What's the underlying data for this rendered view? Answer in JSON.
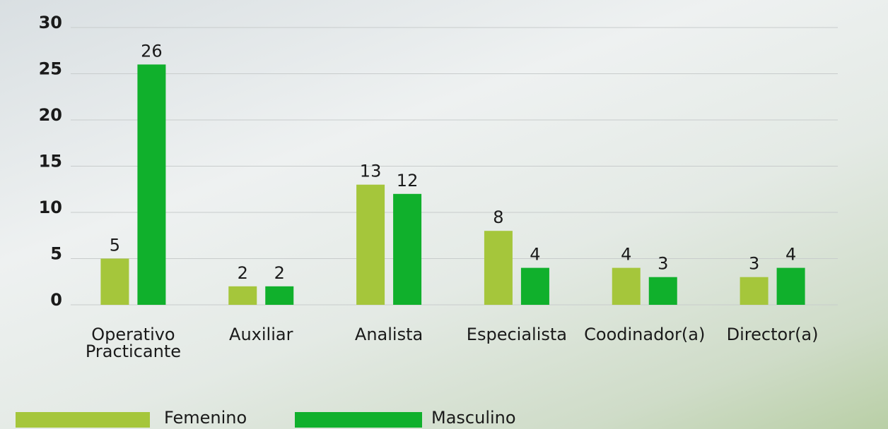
{
  "chart_data": {
    "type": "bar",
    "categories": [
      "Operativo Practicante",
      "Auxiliar",
      "Analista",
      "Especialista",
      "Coodinador(a)",
      "Director(a)"
    ],
    "series": [
      {
        "name": "Femenino",
        "color": "#a5c63b",
        "values": [
          5,
          2,
          13,
          8,
          4,
          3
        ]
      },
      {
        "name": "Masculino",
        "color": "#10b02c",
        "values": [
          26,
          2,
          12,
          4,
          3,
          4
        ]
      }
    ],
    "ylim": [
      0,
      30
    ],
    "yticks": [
      0,
      5,
      10,
      15,
      20,
      25,
      30
    ],
    "grid": true,
    "legend": "bottom"
  }
}
